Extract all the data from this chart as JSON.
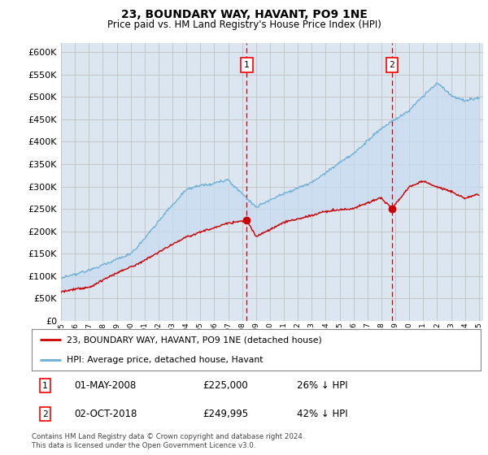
{
  "title": "23, BOUNDARY WAY, HAVANT, PO9 1NE",
  "subtitle": "Price paid vs. HM Land Registry's House Price Index (HPI)",
  "ylim": [
    0,
    620000
  ],
  "yticks": [
    0,
    50000,
    100000,
    150000,
    200000,
    250000,
    300000,
    350000,
    400000,
    450000,
    500000,
    550000,
    600000
  ],
  "transaction1_date": 2008.33,
  "transaction1_price": 225000,
  "transaction1_date_str": "01-MAY-2008",
  "transaction1_pct": "26% ↓ HPI",
  "transaction2_date": 2018.75,
  "transaction2_price": 249995,
  "transaction2_date_str": "02-OCT-2018",
  "transaction2_pct": "42% ↓ HPI",
  "legend_label_red": "23, BOUNDARY WAY, HAVANT, PO9 1NE (detached house)",
  "legend_label_blue": "HPI: Average price, detached house, Havant",
  "footer": "Contains HM Land Registry data © Crown copyright and database right 2024.\nThis data is licensed under the Open Government Licence v3.0.",
  "hpi_color": "#6baed6",
  "hpi_fill": "#c6dbef",
  "price_color": "#cc0000",
  "bg_color": "#dce6f1",
  "plot_bg": "#ffffff",
  "grid_color": "#bbbbbb",
  "vline_color": "#cc0000"
}
